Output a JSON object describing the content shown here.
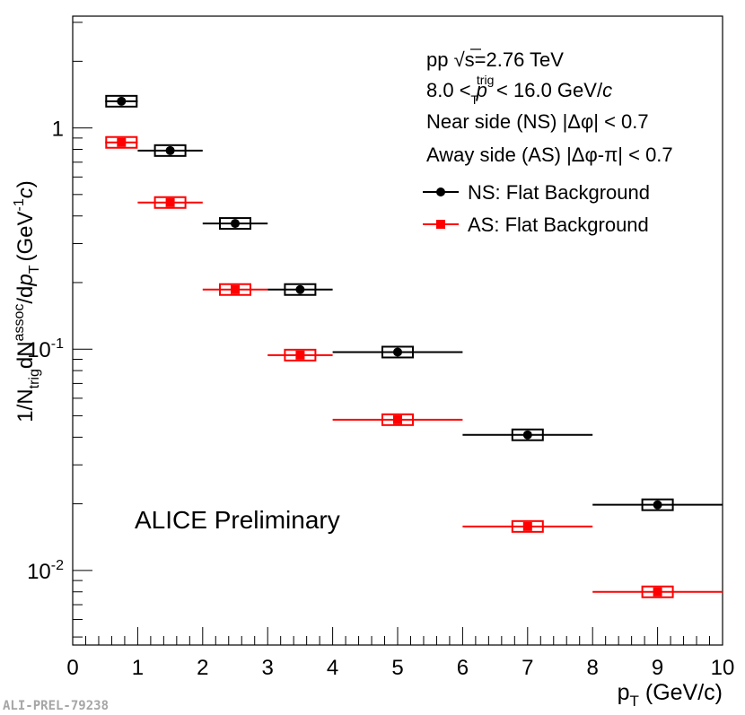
{
  "chart_data": {
    "type": "scatter",
    "x_axis": {
      "label": "p",
      "label_sub": "T",
      "label_unit": " (GeV/c)",
      "range": [
        0,
        10
      ],
      "ticks": [
        "0",
        "1",
        "2",
        "3",
        "4",
        "5",
        "6",
        "7",
        "8",
        "9",
        "10"
      ]
    },
    "y_axis": {
      "scale": "log",
      "range": [
        0.0046,
        3.2
      ],
      "label_parts": {
        "a": "1/N",
        "a_sub": "trig",
        "b": "dN",
        "b_sup": "assoc",
        "c": "/d",
        "c_it": "p",
        "c_sub": "T",
        "d": "(GeV",
        "d_sup": "-1",
        "e_it": "c",
        "f": ")"
      },
      "ticks": [
        {
          "value": 1,
          "base": "1",
          "exp": ""
        },
        {
          "value": 0.1,
          "base": "10",
          "exp": "-1"
        },
        {
          "value": 0.01,
          "base": "10",
          "exp": "-2"
        }
      ]
    },
    "series": [
      {
        "name": "NS: Flat Background",
        "color": "#000000",
        "marker": "circle",
        "points": [
          {
            "x": 0.75,
            "xlo": 0.5,
            "xhi": 1.0,
            "y": 1.32
          },
          {
            "x": 1.5,
            "xlo": 1.0,
            "xhi": 2.0,
            "y": 0.79
          },
          {
            "x": 2.5,
            "xlo": 2.0,
            "xhi": 3.0,
            "y": 0.37
          },
          {
            "x": 3.5,
            "xlo": 3.0,
            "xhi": 4.0,
            "y": 0.186
          },
          {
            "x": 5.0,
            "xlo": 4.0,
            "xhi": 6.0,
            "y": 0.097
          },
          {
            "x": 7.0,
            "xlo": 6.0,
            "xhi": 8.0,
            "y": 0.041
          },
          {
            "x": 9.0,
            "xlo": 8.0,
            "xhi": 10.0,
            "y": 0.0198
          }
        ]
      },
      {
        "name": "AS: Flat Background",
        "color": "#ff0000",
        "marker": "square",
        "points": [
          {
            "x": 0.75,
            "xlo": 0.5,
            "xhi": 1.0,
            "y": 0.86
          },
          {
            "x": 1.5,
            "xlo": 1.0,
            "xhi": 2.0,
            "y": 0.46
          },
          {
            "x": 2.5,
            "xlo": 2.0,
            "xhi": 3.0,
            "y": 0.186
          },
          {
            "x": 3.5,
            "xlo": 3.0,
            "xhi": 4.0,
            "y": 0.094
          },
          {
            "x": 5.0,
            "xlo": 4.0,
            "xhi": 6.0,
            "y": 0.048
          },
          {
            "x": 7.0,
            "xlo": 6.0,
            "xhi": 8.0,
            "y": 0.0158
          },
          {
            "x": 9.0,
            "xlo": 8.0,
            "xhi": 10.0,
            "y": 0.008
          }
        ]
      }
    ],
    "annotations": {
      "energy": {
        "a": "pp ",
        "sqrt": "√",
        "s": "s",
        "b": "=2.76 TeV"
      },
      "trig": {
        "a": "8.0 < ",
        "p": "p",
        "p_sup": "trig",
        "p_sub": "T",
        "b": " < 16.0 GeV/",
        "c": "c"
      },
      "near_side": "Near side (NS) |Δφ| < 0.7",
      "away_side": "Away side (AS) |Δφ-π| < 0.7",
      "preliminary": "ALICE Preliminary",
      "id": "ALI-PREL-79238"
    },
    "legend": {
      "position": "top-right",
      "entries": [
        "NS: Flat Background",
        "AS: Flat Background"
      ]
    }
  }
}
